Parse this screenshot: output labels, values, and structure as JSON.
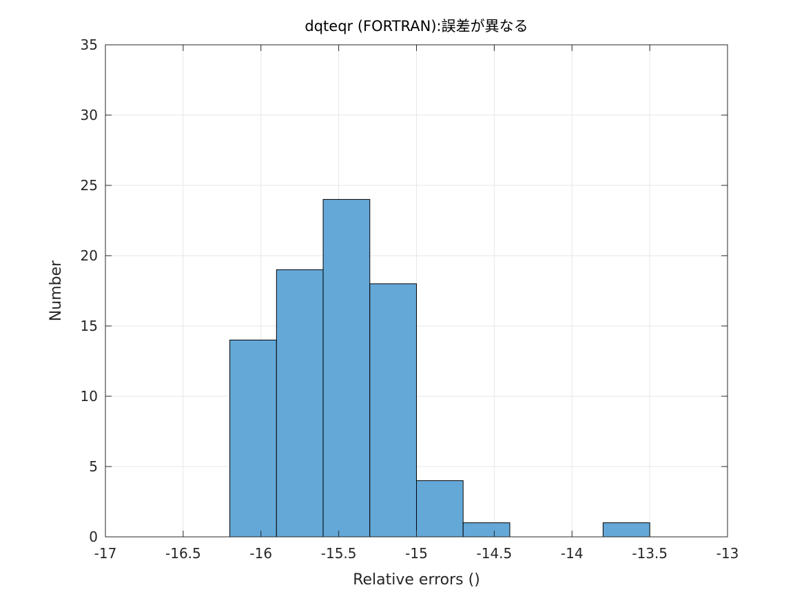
{
  "chart_data": {
    "type": "bar",
    "title": "dqteqr (FORTRAN):誤差が異なる",
    "xlabel": "Relative errors ()",
    "ylabel": "Number",
    "xlim": [
      -17,
      -13
    ],
    "ylim": [
      0,
      35
    ],
    "grid": true,
    "bin_width": 0.3,
    "bins": [
      {
        "start": -16.2,
        "end": -15.9,
        "value": 14
      },
      {
        "start": -15.9,
        "end": -15.6,
        "value": 19
      },
      {
        "start": -15.6,
        "end": -15.3,
        "value": 24
      },
      {
        "start": -15.3,
        "end": -15.0,
        "value": 18
      },
      {
        "start": -15.0,
        "end": -14.7,
        "value": 4
      },
      {
        "start": -14.7,
        "end": -14.4,
        "value": 1
      },
      {
        "start": -13.8,
        "end": -13.5,
        "value": 1
      }
    ],
    "xticks": [
      -17,
      -16.5,
      -16,
      -15.5,
      -15,
      -14.5,
      -14,
      -13.5,
      -13
    ],
    "xtick_labels": [
      "-17",
      "-16.5",
      "-16",
      "-15.5",
      "-15",
      "-14.5",
      "-14",
      "-13.5",
      "-13"
    ],
    "yticks": [
      0,
      5,
      10,
      15,
      20,
      25,
      30,
      35
    ],
    "ytick_labels": [
      "0",
      "5",
      "10",
      "15",
      "20",
      "25",
      "30",
      "35"
    ],
    "colors": {
      "bar_fill": "#64a8d8",
      "bar_edge": "#000000",
      "grid": "#e6e6e6",
      "axes": "#262626"
    }
  }
}
